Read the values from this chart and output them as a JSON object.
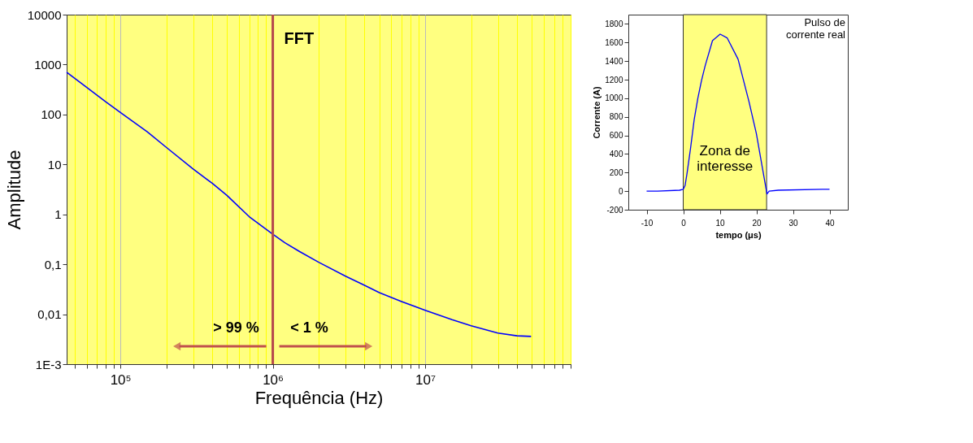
{
  "chart_data": [
    {
      "type": "line",
      "xlabel": "Frequência (Hz)",
      "ylabel": "Amplitude",
      "log": "xy",
      "grid": "x",
      "legend": false,
      "line_style": "solid",
      "marker": "none",
      "x": [
        44400,
        60000,
        80000,
        100000,
        150000,
        200000,
        300000,
        400000,
        500000,
        700000,
        1000000,
        1200000,
        1500000,
        2000000,
        3000000,
        4000000,
        5000000,
        7000000,
        10000000,
        15000000,
        20000000,
        30000000,
        40000000,
        49500000
      ],
      "series": [
        {
          "color": "#0000ff",
          "values": [
            700,
            350,
            180,
            110,
            45,
            22,
            8.1,
            4.2,
            2.4,
            0.9,
            0.4,
            0.27,
            0.18,
            0.11,
            0.058,
            0.038,
            0.027,
            0.018,
            0.012,
            0.0078,
            0.0059,
            0.0042,
            0.0037,
            0.0036
          ]
        }
      ],
      "xlim": [
        44400,
        90000000
      ],
      "xticks": [
        {
          "value": 50000,
          "label": null
        },
        {
          "value": 60000,
          "label": null
        },
        {
          "value": 70000,
          "label": null
        },
        {
          "value": 80000,
          "label": null
        },
        {
          "value": 90000,
          "label": null
        },
        {
          "value": 100000,
          "label": "10⁵"
        },
        {
          "value": 200000,
          "label": null
        },
        {
          "value": 300000,
          "label": null
        },
        {
          "value": 400000,
          "label": null
        },
        {
          "value": 500000,
          "label": null
        },
        {
          "value": 600000,
          "label": null
        },
        {
          "value": 700000,
          "label": null
        },
        {
          "value": 800000,
          "label": null
        },
        {
          "value": 900000,
          "label": null
        },
        {
          "value": 1000000,
          "label": "10⁶"
        },
        {
          "value": 2000000,
          "label": null
        },
        {
          "value": 3000000,
          "label": null
        },
        {
          "value": 4000000,
          "label": null
        },
        {
          "value": 5000000,
          "label": null
        },
        {
          "value": 6000000,
          "label": null
        },
        {
          "value": 7000000,
          "label": null
        },
        {
          "value": 8000000,
          "label": null
        },
        {
          "value": 9000000,
          "label": null
        },
        {
          "value": 10000000,
          "label": "10⁷"
        },
        {
          "value": 20000000,
          "label": null
        },
        {
          "value": 30000000,
          "label": null
        },
        {
          "value": 40000000,
          "label": null
        },
        {
          "value": 50000000,
          "label": null
        },
        {
          "value": 60000000,
          "label": null
        },
        {
          "value": 70000000,
          "label": null
        },
        {
          "value": 80000000,
          "label": null
        },
        {
          "value": 90000000,
          "label": null
        }
      ],
      "ylim": [
        0.001,
        10000
      ],
      "yticks": [
        {
          "value": 0.001,
          "label": "1E-3"
        },
        {
          "value": 0.01,
          "label": "0,01"
        },
        {
          "value": 0.1,
          "label": "0,1"
        },
        1,
        10,
        100,
        1000,
        10000
      ],
      "ref_lines": [
        {
          "axis": "x",
          "value": 1000000,
          "label": "FFT",
          "color": "#b5474b",
          "line_style": "solid"
        }
      ],
      "annotations": [
        "> 99 %",
        "< 1 %"
      ]
    },
    {
      "type": "line",
      "xlabel": "tempo (μs)",
      "ylabel": "Corrente (A)",
      "grid": false,
      "legend": false,
      "line_style": "solid",
      "marker": "none",
      "x": [
        -10,
        -7,
        -1,
        0,
        0.5,
        1,
        2,
        3,
        4,
        5,
        6,
        8,
        10.1,
        12,
        15,
        18,
        20,
        22,
        22.9,
        23.5,
        26,
        38,
        40
      ],
      "series": [
        {
          "color": "#0000ff",
          "values": [
            0,
            0,
            10,
            20,
            60,
            180,
            460,
            770,
            1000,
            1190,
            1350,
            1620,
            1690,
            1650,
            1420,
            960,
            620,
            170,
            -30,
            0,
            10,
            20,
            20
          ]
        }
      ],
      "xlim": [
        -15,
        45
      ],
      "xticks": [
        -10,
        0,
        10,
        20,
        30,
        40
      ],
      "ylim": [
        -200,
        1900
      ],
      "yticks": [
        -200,
        0,
        200,
        400,
        600,
        800,
        1000,
        1200,
        1400,
        1600,
        1800
      ],
      "bands": [
        {
          "axis": "x",
          "from": 0,
          "to": 22.8,
          "label": "Zona de\ninteresse",
          "color": "#ffff80"
        }
      ],
      "annotations": [
        "Pulso de\ncorrente real"
      ]
    }
  ]
}
